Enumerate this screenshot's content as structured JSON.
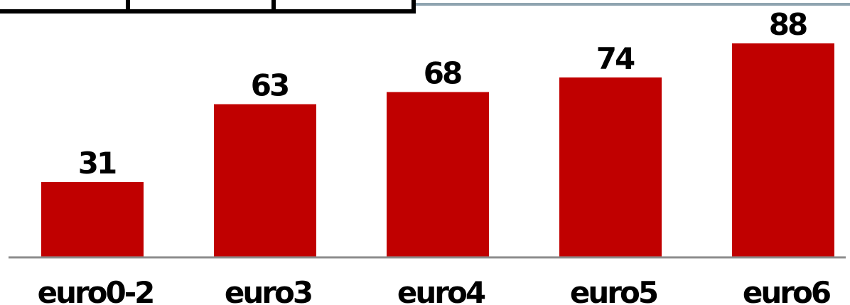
{
  "colors": {
    "bar": "#c00000",
    "axis": "#8c8c8c",
    "top_rule": "#8fa4b0",
    "frame": "#000000"
  },
  "chart_data": {
    "type": "bar",
    "categories": [
      "euro0-2",
      "euro3",
      "euro4",
      "euro5",
      "euro6"
    ],
    "values": [
      31,
      63,
      68,
      74,
      88
    ],
    "title": "",
    "xlabel": "",
    "ylabel": "",
    "ylim": [
      0,
      100
    ],
    "grid": false,
    "legend": "none",
    "data_labels": [
      "31",
      "63",
      "68",
      "74",
      "88"
    ]
  }
}
